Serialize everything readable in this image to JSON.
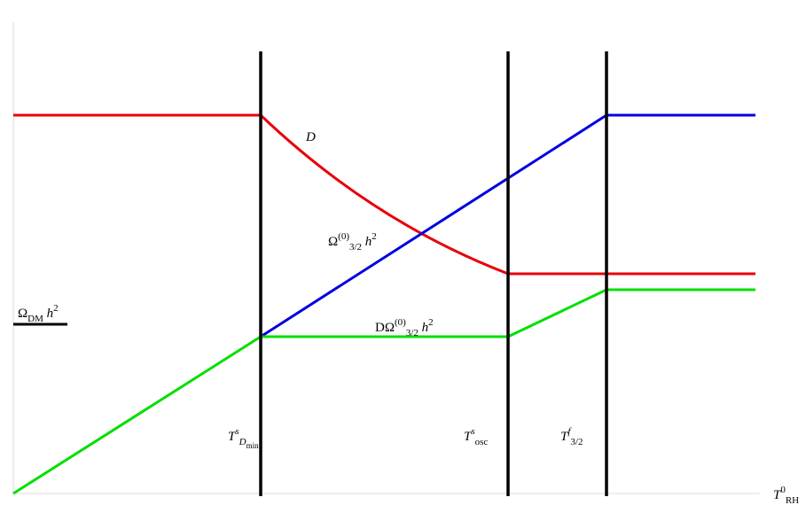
{
  "labels": {
    "omega_dm": [
      {
        "t": "Ω"
      },
      {
        "t": "DM",
        "pos": "sub"
      },
      {
        "t": " h",
        "style": "italic"
      },
      {
        "t": "2",
        "pos": "sup"
      }
    ],
    "d_curve": [
      {
        "t": "D",
        "style": "italic"
      }
    ],
    "omega_32": [
      {
        "t": "Ω"
      },
      {
        "t": "(0)",
        "pos": "sup"
      },
      {
        "t": "3/2",
        "pos": "sub"
      },
      {
        "t": " h",
        "style": "italic"
      },
      {
        "t": "2",
        "pos": "sup"
      }
    ],
    "d_omega_32": [
      {
        "t": "DΩ"
      },
      {
        "t": "(0)",
        "pos": "sup"
      },
      {
        "t": "3/2",
        "pos": "sub"
      },
      {
        "t": " h",
        "style": "italic"
      },
      {
        "t": "2",
        "pos": "sup"
      }
    ],
    "t_dmin": [
      {
        "t": "T",
        "style": "italic"
      },
      {
        "t": "s",
        "pos": "sup",
        "style": "italic"
      },
      {
        "t": "D",
        "pos": "sub",
        "style": "italic"
      },
      {
        "t": "min",
        "pos": "subsub"
      }
    ],
    "t_osc": [
      {
        "t": "T",
        "style": "italic"
      },
      {
        "t": "s",
        "pos": "sup",
        "style": "italic"
      },
      {
        "t": "osc",
        "pos": "sub"
      }
    ],
    "t_f32": [
      {
        "t": "T",
        "style": "italic"
      },
      {
        "t": "f",
        "pos": "sup",
        "style": "italic"
      },
      {
        "t": "3/2",
        "pos": "sub"
      }
    ],
    "t_rh": [
      {
        "t": "T",
        "style": "italic"
      },
      {
        "t": "0",
        "pos": "sup"
      },
      {
        "t": "RH",
        "pos": "sub"
      }
    ]
  }
}
